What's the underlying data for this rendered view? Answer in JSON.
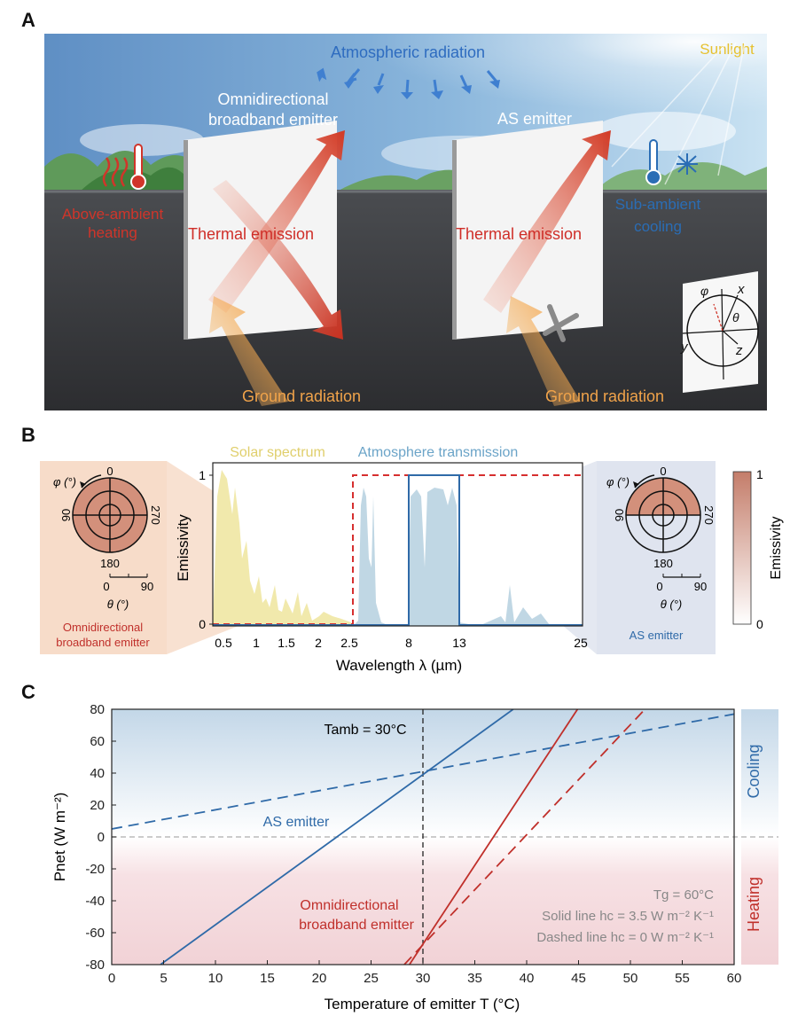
{
  "panel_labels": [
    "A",
    "B",
    "C"
  ],
  "panelA": {
    "atmospheric": "Atmospheric radiation",
    "sunlight": "Sunlight",
    "omni_title_1": "Omnidirectional",
    "omni_title_2": "broadband emitter",
    "as_title": "AS emitter",
    "thermal_left": "Thermal emission",
    "thermal_right": "Thermal emission",
    "heating_1": "Above-ambient",
    "heating_2": "heating",
    "cooling_1": "Sub-ambient",
    "cooling_2": "cooling",
    "ground_left": "Ground radiation",
    "ground_right": "Ground radiation",
    "coord_phi": "φ",
    "coord_theta": "θ",
    "coord_x": "x",
    "coord_y": "y",
    "coord_z": "z",
    "colors": {
      "heat": "#d0352a",
      "cool": "#2a6db5",
      "sun": "#e8c12a",
      "ground": "#f0a34a"
    }
  },
  "panelB": {
    "solar_label": "Solar spectrum",
    "atm_label": "Atmosphere transmission",
    "ylabel": "Emissivity",
    "xlabel": "Wavelength λ (µm)",
    "yticks": [
      "0",
      "1"
    ],
    "xticks": [
      "0.5",
      "1",
      "1.5",
      "2",
      "2.5",
      "8",
      "13",
      "25"
    ],
    "left_polar": {
      "phi": "φ (°)",
      "top": "0",
      "left": "90",
      "right": "270",
      "bottom": "180",
      "theta": "θ (°)",
      "r0": "0",
      "r90": "90",
      "caption_1": "Omnidirectional",
      "caption_2": "broadband emitter"
    },
    "right_polar": {
      "phi": "φ (°)",
      "top": "0",
      "left": "90",
      "right": "270",
      "bottom": "180",
      "theta": "θ (°)",
      "r0": "0",
      "r90": "90",
      "caption": "AS emitter"
    },
    "colorbar": {
      "label": "Emissivity",
      "max": "1",
      "min": "0"
    },
    "colors": {
      "solar": "#f0e7a3",
      "atm": "#b9d3e1",
      "omni": "#d62f2f",
      "as": "#2f6aa8"
    }
  },
  "chart_data": {
    "type": "line",
    "xlabel": "Temperature of emitter T (°C)",
    "ylabel": "Pnet (W m⁻²)",
    "xlim": [
      0,
      60
    ],
    "ylim": [
      -80,
      80
    ],
    "xticks": [
      0,
      5,
      10,
      15,
      20,
      25,
      30,
      35,
      40,
      45,
      50,
      55,
      60
    ],
    "yticks": [
      80,
      60,
      40,
      20,
      0,
      -20,
      -40,
      -60,
      -80
    ],
    "series": [
      {
        "name": "AS emitter",
        "style": "solid",
        "color": "#2f6aa8",
        "x": [
          4.7,
          38.7
        ],
        "y": [
          -80,
          80
        ]
      },
      {
        "name": "AS emitter",
        "style": "dashed",
        "color": "#2f6aa8",
        "x": [
          0,
          60
        ],
        "y": [
          5,
          77
        ]
      },
      {
        "name": "Omnidirectional broadband emitter",
        "style": "solid",
        "color": "#c0302b",
        "x": [
          28.7,
          44.9
        ],
        "y": [
          -80,
          80
        ]
      },
      {
        "name": "Omnidirectional broadband emitter",
        "style": "dashed",
        "color": "#c0302b",
        "x": [
          28.2,
          51.4
        ],
        "y": [
          -80,
          80
        ]
      }
    ],
    "annotations": {
      "tamb": "Tamb = 30°C",
      "as_label": "AS emitter",
      "omni_1": "Omnidirectional",
      "omni_2": "broadband emitter",
      "tg": "Tg = 60°C",
      "solid": "Solid line hc = 3.5 W m⁻² K⁻¹",
      "dashed": "Dashed line hc = 0 W m⁻² K⁻¹",
      "cooling": "Cooling",
      "heating": "Heating"
    }
  }
}
